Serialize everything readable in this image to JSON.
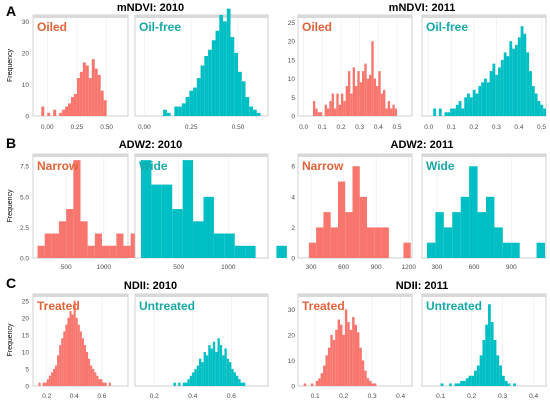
{
  "colors": {
    "red": "#F8766D",
    "teal": "#00BFC4",
    "strip_bg": "#d9d9d9",
    "label_red": "#E0643A",
    "label_teal": "#19A8A8"
  },
  "row_labels": [
    "A",
    "B",
    "C"
  ],
  "chart_data": [
    {
      "type": "histogram",
      "title": "mNDVI: 2010",
      "ylabel": "Frequency",
      "ylim": [
        0,
        32
      ],
      "yticks": [
        0,
        10,
        20,
        30
      ],
      "panels": [
        {
          "label": "Oiled",
          "color": "red",
          "xlim": [
            -0.12,
            0.68
          ],
          "xticks": [
            0.0,
            0.25,
            0.5
          ],
          "xtick_labels": [
            "0.00",
            "0.25",
            "0.50"
          ],
          "bin_start": -0.05,
          "bin_width": 0.025,
          "values": [
            3,
            0,
            1,
            0,
            2,
            0,
            1,
            2,
            3,
            4,
            6,
            7,
            12,
            14,
            17,
            16,
            12,
            18,
            15,
            13,
            8,
            5
          ]
        },
        {
          "label": "Oil-free",
          "color": "teal",
          "xlim": [
            -0.05,
            0.66
          ],
          "xticks": [
            0.0,
            0.25,
            0.5
          ],
          "xtick_labels": [
            "0.00",
            "0.25",
            "0.50"
          ],
          "bin_start": 0.1,
          "bin_width": 0.02,
          "values": [
            2,
            1,
            0,
            3,
            3,
            4,
            6,
            8,
            9,
            12,
            16,
            19,
            21,
            24,
            27,
            32,
            30,
            34,
            25,
            20,
            14,
            11,
            6,
            3,
            2,
            1
          ]
        }
      ]
    },
    {
      "type": "histogram",
      "title": "mNDVI: 2011",
      "ylabel": "",
      "ylim": [
        0,
        27
      ],
      "yticks": [
        0,
        5,
        10,
        15,
        20,
        25
      ],
      "panels": [
        {
          "label": "Oiled",
          "color": "red",
          "xlim": [
            -0.03,
            0.58
          ],
          "xticks": [
            0.0,
            0.1,
            0.2,
            0.3,
            0.4,
            0.5
          ],
          "xtick_labels": [
            "0.0",
            "0.1",
            "0.2",
            "0.3",
            "0.4",
            "0.5"
          ],
          "bin_start": 0.05,
          "bin_width": 0.0125,
          "values": [
            4,
            2,
            1,
            1,
            0,
            3,
            2,
            4,
            6,
            2,
            6,
            3,
            6,
            4,
            8,
            12,
            6,
            13,
            8,
            12,
            9,
            12,
            14,
            10,
            11,
            20,
            10,
            8,
            12,
            6,
            7,
            2,
            4,
            2,
            3,
            2
          ]
        },
        {
          "label": "Oil-free",
          "color": "teal",
          "xlim": [
            -0.03,
            0.52
          ],
          "xticks": [
            0.0,
            0.1,
            0.2,
            0.3,
            0.4,
            0.5
          ],
          "xtick_labels": [
            "0.0",
            "0.1",
            "0.2",
            "0.3",
            "0.4",
            "0.5"
          ],
          "bin_start": 0.02,
          "bin_width": 0.0125,
          "values": [
            2,
            0,
            2,
            0,
            1,
            1,
            2,
            2,
            3,
            4,
            2,
            5,
            6,
            5,
            7,
            6,
            8,
            9,
            10,
            9,
            12,
            14,
            11,
            13,
            15,
            17,
            16,
            20,
            18,
            19,
            21,
            24,
            22,
            17,
            12,
            8,
            6,
            4,
            3,
            2
          ]
        }
      ]
    },
    {
      "type": "histogram",
      "title": "ADW2: 2010",
      "ylabel": "Frequency",
      "ylim": [
        0,
        8.5
      ],
      "yticks": [
        0,
        2.5,
        5,
        7.5
      ],
      "ytick_labels": [
        "0.0",
        "2.5",
        "5.0",
        "7.5"
      ],
      "panels": [
        {
          "label": "Narrow",
          "color": "red",
          "xlim": [
            60,
            1320
          ],
          "xticks": [
            500,
            1000
          ],
          "xtick_labels": [
            "500",
            "1000"
          ],
          "bin_start": 120,
          "bin_width": 95,
          "values": [
            1,
            2,
            2,
            3,
            4,
            8,
            3,
            1,
            2,
            1,
            1,
            2,
            1,
            2
          ]
        },
        {
          "label": "Wide",
          "color": "teal",
          "xlim": [
            60,
            1400
          ],
          "xticks": [
            500,
            1000
          ],
          "xtick_labels": [
            "500",
            "1000"
          ],
          "bin_start": 120,
          "bin_width": 105,
          "values": [
            8,
            6,
            6,
            4,
            8,
            3,
            5,
            2,
            2,
            1,
            1,
            0,
            0,
            1
          ]
        }
      ]
    },
    {
      "type": "histogram",
      "title": "ADW2: 2011",
      "ylabel": "",
      "ylim": [
        0,
        6.8
      ],
      "yticks": [
        0,
        2,
        4,
        6
      ],
      "panels": [
        {
          "label": "Narrow",
          "color": "red",
          "xlim": [
            180,
            1230
          ],
          "xticks": [
            300,
            600,
            900,
            1200
          ],
          "xtick_labels": [
            "300",
            "600",
            "900",
            "1200"
          ],
          "bin_start": 280,
          "bin_width": 67,
          "values": [
            1,
            2,
            3,
            2,
            5,
            3,
            6,
            4,
            2,
            2,
            2,
            0,
            0,
            1
          ]
        },
        {
          "label": "Wide",
          "color": "teal",
          "xlim": [
            180,
            1180
          ],
          "xticks": [
            300,
            600,
            900
          ],
          "xtick_labels": [
            "300",
            "600",
            "900"
          ],
          "bin_start": 220,
          "bin_width": 68,
          "values": [
            1,
            3,
            2,
            3,
            4,
            6,
            3,
            4,
            2,
            1,
            1,
            0,
            0,
            1
          ]
        }
      ]
    },
    {
      "type": "histogram",
      "title": "NDII: 2010",
      "ylabel": "Frequency",
      "ylim": [
        0,
        27
      ],
      "yticks": [
        0,
        5,
        10,
        15,
        20,
        25
      ],
      "panels": [
        {
          "label": "Treated",
          "color": "red",
          "xlim": [
            0.1,
            0.79
          ],
          "xticks": [
            0.2,
            0.4,
            0.6
          ],
          "xtick_labels": [
            "0.2",
            "0.4",
            "0.6"
          ],
          "bin_start": 0.14,
          "bin_width": 0.015,
          "values": [
            1,
            0,
            1,
            1,
            2,
            3,
            4,
            5,
            6,
            9,
            12,
            14,
            16,
            18,
            20,
            22,
            21,
            25,
            20,
            18,
            16,
            14,
            12,
            10,
            8,
            6,
            5,
            4,
            3,
            2,
            2,
            1,
            1,
            0,
            1
          ]
        },
        {
          "label": "Untreated",
          "color": "teal",
          "xlim": [
            0.1,
            0.79
          ],
          "xticks": [
            0.2,
            0.4,
            0.6
          ],
          "xtick_labels": [
            "0.2",
            "0.4",
            "0.6"
          ],
          "bin_start": 0.3,
          "bin_width": 0.012,
          "values": [
            1,
            0,
            1,
            0,
            1,
            1,
            2,
            3,
            4,
            5,
            6,
            8,
            7,
            10,
            9,
            12,
            11,
            13,
            10,
            14,
            12,
            9,
            11,
            8,
            7,
            5,
            4,
            3,
            2,
            1,
            1
          ]
        }
      ]
    },
    {
      "type": "histogram",
      "title": "NDII: 2011",
      "ylabel": "",
      "ylim": [
        0,
        36
      ],
      "yticks": [
        0,
        10,
        20,
        30
      ],
      "panels": [
        {
          "label": "Treated",
          "color": "red",
          "xlim": [
            0.04,
            0.44
          ],
          "xticks": [
            0.1,
            0.2,
            0.3,
            0.4
          ],
          "xtick_labels": [
            "0.1",
            "0.2",
            "0.3",
            "0.4"
          ],
          "bin_start": 0.06,
          "bin_width": 0.0085,
          "values": [
            1,
            0,
            0,
            1,
            0,
            2,
            3,
            5,
            8,
            12,
            15,
            20,
            18,
            22,
            26,
            24,
            20,
            30,
            25,
            22,
            27,
            24,
            21,
            15,
            10,
            6,
            3,
            2,
            1,
            1
          ]
        },
        {
          "label": "Untreated",
          "color": "teal",
          "xlim": [
            0.04,
            0.44
          ],
          "xticks": [
            0.1,
            0.2,
            0.3,
            0.4
          ],
          "xtick_labels": [
            "0.1",
            "0.2",
            "0.3",
            "0.4"
          ],
          "bin_start": 0.1,
          "bin_width": 0.009,
          "values": [
            1,
            0,
            0,
            1,
            0,
            1,
            1,
            2,
            2,
            3,
            4,
            4,
            6,
            8,
            12,
            18,
            24,
            32,
            25,
            18,
            12,
            8,
            4,
            2,
            1,
            0,
            1
          ]
        }
      ]
    }
  ]
}
